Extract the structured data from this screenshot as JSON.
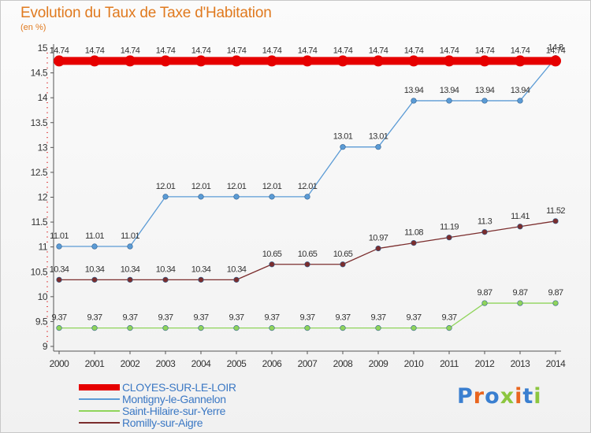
{
  "chart_data": {
    "type": "line",
    "title": "Evolution du Taux de Taxe d'Habitation",
    "unit_label": "(en %)",
    "x": [
      "2000",
      "2001",
      "2002",
      "2003",
      "2004",
      "2005",
      "2006",
      "2007",
      "2008",
      "2009",
      "2010",
      "2011",
      "2012",
      "2013",
      "2014"
    ],
    "y_ticks": [
      "9",
      "9.5",
      "10",
      "10.5",
      "11",
      "11.5",
      "12",
      "12.5",
      "13",
      "13.5",
      "14",
      "14.5",
      "15"
    ],
    "ylim": [
      9,
      15
    ],
    "grid": false,
    "legend_position": "bottom-left",
    "series": [
      {
        "name": "CLOYES-SUR-LE-LOIR",
        "color": "#e60000",
        "values": [
          14.74,
          14.74,
          14.74,
          14.74,
          14.74,
          14.74,
          14.74,
          14.74,
          14.74,
          14.74,
          14.74,
          14.74,
          14.74,
          14.74,
          14.74
        ],
        "labels": [
          "14.74",
          "14.74",
          "14.74",
          "14.74",
          "14.74",
          "14.74",
          "14.74",
          "14.74",
          "14.74",
          "14.74",
          "14.74",
          "14.74",
          "14.74",
          "14.74",
          "14.74"
        ]
      },
      {
        "name": "Montigny-le-Gannelon",
        "color": "#5b9bd5",
        "values": [
          11.01,
          11.01,
          11.01,
          12.01,
          12.01,
          12.01,
          12.01,
          12.01,
          13.01,
          13.01,
          13.94,
          13.94,
          13.94,
          13.94,
          14.8
        ],
        "labels": [
          "11.01",
          "11.01",
          "11.01",
          "12.01",
          "12.01",
          "12.01",
          "12.01",
          "12.01",
          "13.01",
          "13.01",
          "13.94",
          "13.94",
          "13.94",
          "13.94",
          "14.8"
        ]
      },
      {
        "name": "Saint-Hilaire-sur-Yerre",
        "color": "#8fd45a",
        "values": [
          9.37,
          9.37,
          9.37,
          9.37,
          9.37,
          9.37,
          9.37,
          9.37,
          9.37,
          9.37,
          9.37,
          9.37,
          9.87,
          9.87,
          9.87
        ],
        "labels": [
          "9.37",
          "9.37",
          "9.37",
          "9.37",
          "9.37",
          "9.37",
          "9.37",
          "9.37",
          "9.37",
          "9.37",
          "9.37",
          "9.37",
          "9.87",
          "9.87",
          "9.87"
        ]
      },
      {
        "name": "Romilly-sur-Aigre",
        "color": "#7b2d2d",
        "values": [
          10.34,
          10.34,
          10.34,
          10.34,
          10.34,
          10.34,
          10.65,
          10.65,
          10.65,
          10.97,
          11.08,
          11.19,
          11.3,
          11.41,
          11.52
        ],
        "labels": [
          "10.34",
          "10.34",
          "10.34",
          "10.34",
          "10.34",
          "10.34",
          "10.65",
          "10.65",
          "10.65",
          "10.97",
          "11.08",
          "11.19",
          "11.3",
          "11.41",
          "11.52"
        ]
      }
    ]
  },
  "brand": {
    "text": "Proxiti",
    "colors": [
      "#3a7fd0",
      "#e9651e",
      "#3a7fd0",
      "#8cc63f",
      "#e9651e",
      "#3a7fd0",
      "#8cc63f"
    ]
  }
}
